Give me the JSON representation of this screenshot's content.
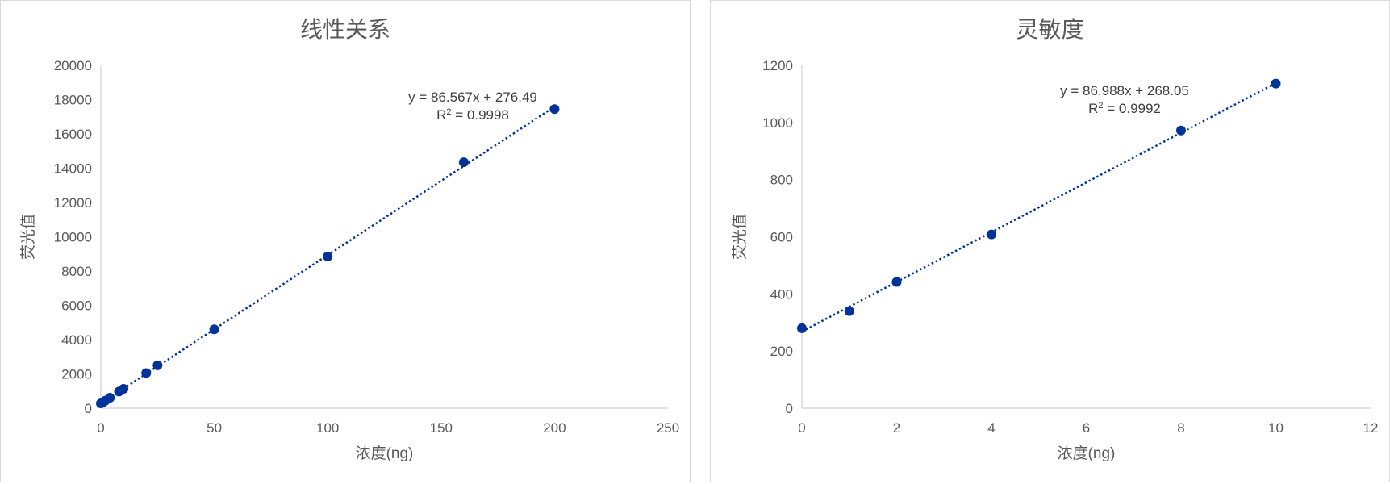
{
  "chart_data": [
    {
      "type": "scatter",
      "title": "线性关系",
      "xlabel": "浓度(ng)",
      "ylabel": "荧光值",
      "xlim": [
        0,
        250
      ],
      "ylim": [
        0,
        20000
      ],
      "xticks": [
        0,
        50,
        100,
        150,
        200,
        250
      ],
      "yticks": [
        0,
        2000,
        4000,
        6000,
        8000,
        10000,
        12000,
        14000,
        16000,
        18000,
        20000
      ],
      "grid": false,
      "color": "#003399",
      "series": [
        {
          "x": [
            0,
            1,
            2,
            4,
            8,
            10,
            20,
            25,
            50,
            100,
            160,
            200
          ],
          "y": [
            280,
            340,
            440,
            610,
            970,
            1130,
            2050,
            2500,
            4600,
            8850,
            14350,
            17450
          ]
        }
      ],
      "trendline": {
        "type": "linear",
        "slope": 86.567,
        "intercept": 276.49
      },
      "equation": "y = 86.567x + 276.49",
      "r2_prefix": "R",
      "r2_sup": "2",
      "r2_rest": " = 0.9998"
    },
    {
      "type": "scatter",
      "title": "灵敏度",
      "xlabel": "浓度(ng)",
      "ylabel": "荧光值",
      "xlim": [
        0,
        12
      ],
      "ylim": [
        0,
        1200
      ],
      "xticks": [
        0,
        2,
        4,
        6,
        8,
        10,
        12
      ],
      "yticks": [
        0,
        200,
        400,
        600,
        800,
        1000,
        1200
      ],
      "grid": false,
      "color": "#003399",
      "series": [
        {
          "x": [
            0,
            1,
            2,
            4,
            8,
            10
          ],
          "y": [
            280,
            340,
            442,
            608,
            972,
            1136
          ]
        }
      ],
      "trendline": {
        "type": "linear",
        "slope": 86.988,
        "intercept": 268.05
      },
      "equation": "y = 86.988x + 268.05",
      "r2_prefix": "R",
      "r2_sup": "2",
      "r2_rest": " = 0.9992"
    }
  ]
}
